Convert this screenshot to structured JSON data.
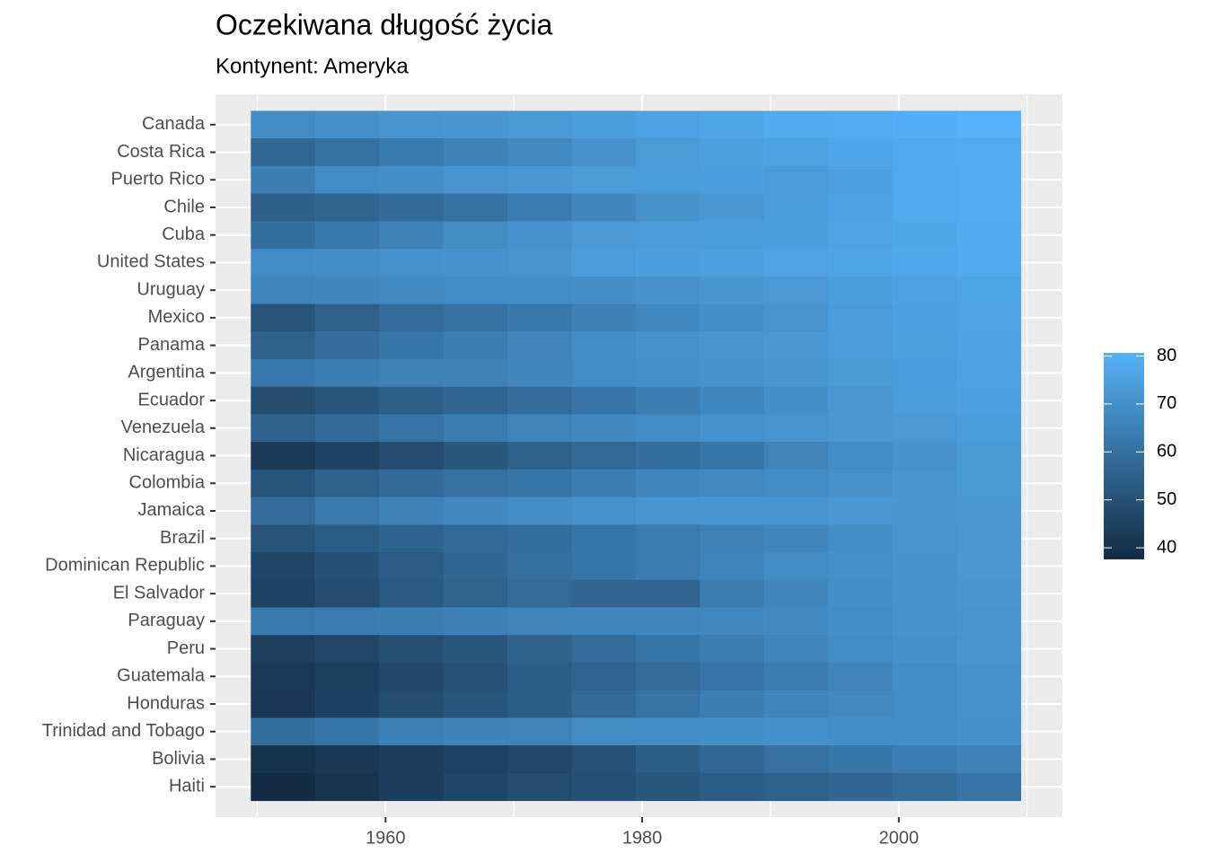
{
  "chart_data": {
    "type": "heatmap",
    "title": "Oczekiwana długość życia",
    "subtitle": "Kontynent: Ameryka",
    "x": [
      1952,
      1957,
      1962,
      1967,
      1972,
      1977,
      1982,
      1987,
      1992,
      1997,
      2002,
      2007
    ],
    "xlim": [
      1946.75,
      2012.75
    ],
    "xticks": [
      1960,
      1980,
      2000
    ],
    "categories": [
      "Canada",
      "Costa Rica",
      "Puerto Rico",
      "Chile",
      "Cuba",
      "United States",
      "Uruguay",
      "Mexico",
      "Panama",
      "Argentina",
      "Ecuador",
      "Venezuela",
      "Nicaragua",
      "Colombia",
      "Jamaica",
      "Brazil",
      "Dominican Republic",
      "El Salvador",
      "Paraguay",
      "Peru",
      "Guatemala",
      "Honduras",
      "Trinidad and Tobago",
      "Bolivia",
      "Haiti"
    ],
    "values": [
      [
        68.75,
        69.96,
        71.3,
        72.13,
        72.88,
        74.21,
        75.76,
        76.86,
        77.95,
        78.61,
        79.77,
        80.653
      ],
      [
        57.206,
        60.026,
        62.842,
        65.424,
        67.849,
        70.75,
        73.45,
        74.752,
        75.713,
        77.26,
        78.123,
        78.782
      ],
      [
        64.28,
        68.54,
        69.62,
        71.1,
        72.16,
        73.44,
        73.75,
        74.63,
        73.911,
        74.917,
        77.778,
        78.746
      ],
      [
        54.745,
        56.074,
        57.924,
        60.523,
        63.441,
        67.052,
        70.565,
        72.492,
        74.126,
        75.816,
        77.86,
        78.553
      ],
      [
        59.421,
        62.325,
        65.246,
        68.29,
        70.723,
        72.649,
        73.717,
        74.174,
        74.414,
        76.151,
        77.158,
        78.273
      ],
      [
        68.44,
        69.49,
        70.21,
        70.76,
        71.34,
        73.38,
        74.65,
        75.02,
        76.09,
        76.81,
        77.31,
        78.242
      ],
      [
        66.071,
        67.044,
        68.253,
        68.468,
        68.673,
        69.481,
        70.805,
        71.918,
        72.752,
        74.223,
        75.307,
        76.384
      ],
      [
        50.789,
        55.19,
        58.299,
        60.11,
        62.361,
        65.032,
        67.405,
        69.498,
        71.455,
        73.67,
        74.902,
        76.195
      ],
      [
        55.191,
        59.201,
        61.817,
        64.071,
        66.216,
        68.681,
        70.472,
        71.523,
        72.462,
        73.738,
        74.712,
        75.537
      ],
      [
        62.485,
        64.399,
        65.142,
        65.634,
        67.065,
        68.481,
        69.942,
        70.774,
        71.868,
        73.275,
        74.34,
        75.32
      ],
      [
        48.357,
        51.356,
        54.64,
        56.678,
        58.796,
        61.31,
        64.342,
        67.231,
        69.613,
        72.312,
        74.173,
        74.994
      ],
      [
        55.088,
        57.907,
        60.77,
        63.479,
        65.712,
        67.456,
        68.557,
        70.19,
        71.15,
        72.146,
        72.766,
        73.747
      ],
      [
        42.314,
        45.432,
        48.632,
        51.884,
        55.151,
        57.47,
        59.298,
        62.008,
        65.843,
        68.426,
        70.836,
        72.899
      ],
      [
        50.643,
        55.118,
        57.863,
        59.963,
        61.623,
        63.837,
        66.653,
        67.768,
        68.421,
        70.313,
        71.682,
        72.889
      ],
      [
        58.53,
        62.61,
        65.61,
        67.51,
        69.0,
        70.11,
        71.21,
        71.77,
        71.766,
        72.262,
        72.047,
        72.567
      ],
      [
        50.917,
        53.285,
        55.665,
        57.632,
        59.504,
        61.489,
        63.336,
        65.205,
        67.057,
        69.388,
        71.006,
        72.39
      ],
      [
        45.928,
        49.828,
        53.459,
        56.751,
        59.631,
        61.788,
        63.727,
        66.046,
        68.457,
        69.957,
        70.847,
        72.235
      ],
      [
        45.262,
        48.57,
        52.307,
        55.855,
        58.207,
        56.696,
        56.604,
        63.154,
        66.798,
        69.535,
        70.734,
        71.878
      ],
      [
        62.649,
        63.196,
        64.361,
        64.951,
        65.815,
        66.353,
        66.874,
        67.378,
        68.225,
        69.4,
        70.755,
        71.752
      ],
      [
        43.902,
        46.263,
        49.096,
        51.445,
        55.448,
        58.447,
        61.406,
        64.134,
        66.458,
        68.386,
        69.906,
        71.421
      ],
      [
        42.023,
        44.142,
        46.954,
        50.016,
        53.738,
        56.029,
        58.137,
        60.782,
        63.373,
        66.322,
        68.978,
        70.259
      ],
      [
        41.912,
        44.665,
        48.041,
        50.924,
        53.884,
        57.402,
        60.909,
        64.492,
        66.399,
        67.659,
        68.565,
        70.198
      ],
      [
        59.1,
        61.8,
        64.9,
        65.4,
        65.9,
        68.3,
        68.832,
        69.582,
        69.862,
        69.465,
        68.976,
        69.819
      ],
      [
        40.414,
        41.89,
        43.428,
        45.032,
        46.714,
        50.023,
        53.859,
        57.251,
        59.957,
        62.05,
        63.883,
        65.554
      ],
      [
        37.579,
        40.696,
        43.59,
        46.243,
        48.042,
        49.923,
        51.461,
        53.636,
        55.089,
        56.671,
        58.137,
        60.916
      ]
    ],
    "colorscale": {
      "low": "#132B43",
      "high": "#56B1F7",
      "ticks": [
        40,
        50,
        60,
        70,
        80
      ]
    },
    "grid": true
  }
}
